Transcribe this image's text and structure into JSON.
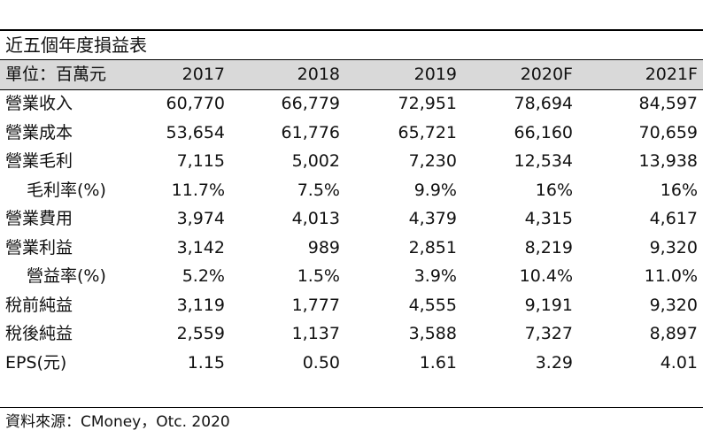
{
  "title": "近五個年度損益表",
  "header": {
    "unit_label": "單位：百萬元",
    "years": [
      "2017",
      "2018",
      "2019",
      "2020F",
      "2021F"
    ]
  },
  "rows": [
    {
      "label": "營業收入",
      "indent": false,
      "values": [
        "60,770",
        "66,779",
        "72,951",
        "78,694",
        "84,597"
      ]
    },
    {
      "label": "營業成本",
      "indent": false,
      "values": [
        "53,654",
        "61,776",
        "65,721",
        "66,160",
        "70,659"
      ]
    },
    {
      "label": "營業毛利",
      "indent": false,
      "values": [
        "7,115",
        "5,002",
        "7,230",
        "12,534",
        "13,938"
      ]
    },
    {
      "label": "毛利率(%)",
      "indent": true,
      "values": [
        "11.7%",
        "7.5%",
        "9.9%",
        "16%",
        "16%"
      ]
    },
    {
      "label": "營業費用",
      "indent": false,
      "values": [
        "3,974",
        "4,013",
        "4,379",
        "4,315",
        "4,617"
      ]
    },
    {
      "label": "營業利益",
      "indent": false,
      "values": [
        "3,142",
        "989",
        "2,851",
        "8,219",
        "9,320"
      ]
    },
    {
      "label": "營益率(%)",
      "indent": true,
      "values": [
        "5.2%",
        "1.5%",
        "3.9%",
        "10.4%",
        "11.0%"
      ]
    },
    {
      "label": "稅前純益",
      "indent": false,
      "values": [
        "3,119",
        "1,777",
        "4,555",
        "9,191",
        "9,320"
      ]
    },
    {
      "label": "稅後純益",
      "indent": false,
      "values": [
        "2,559",
        "1,137",
        "3,588",
        "7,327",
        "8,897"
      ]
    },
    {
      "label": "EPS(元)",
      "indent": false,
      "values": [
        "1.15",
        "0.50",
        "1.61",
        "3.29",
        "4.01"
      ]
    }
  ],
  "footer": "資料來源：CMoney，Otc. 2020"
}
